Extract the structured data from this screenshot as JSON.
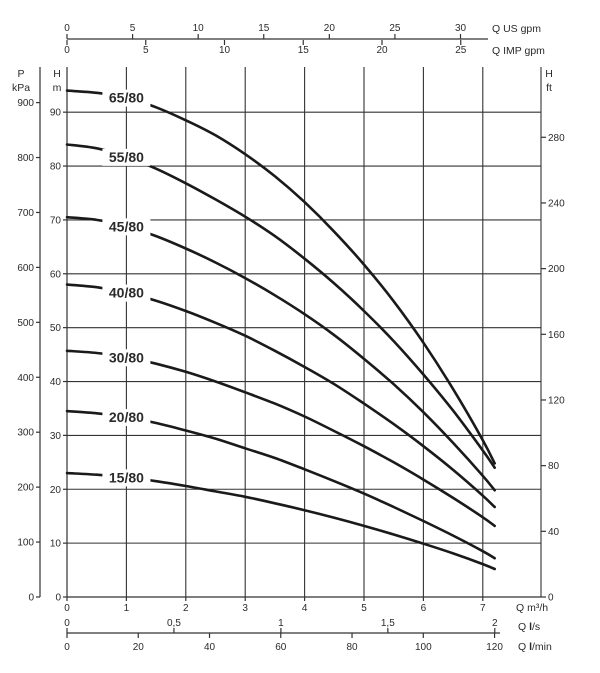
{
  "chart_data": {
    "type": "line",
    "x_unit": "Q m³/h",
    "y_unit": "H m",
    "xlim": [
      0,
      7
    ],
    "ylim": [
      0,
      95
    ],
    "series": [
      {
        "name": "65/80",
        "x": [
          0,
          0.5,
          1,
          1.5,
          2,
          2.5,
          3,
          3.5,
          4,
          4.5,
          5,
          5.5,
          6,
          6.5,
          7,
          7.2
        ],
        "y": [
          94,
          93.6,
          92.7,
          90.9,
          88.5,
          85.7,
          82.2,
          78.1,
          73.3,
          67.8,
          61.7,
          54.9,
          47.2,
          38.6,
          29.1,
          24.8
        ]
      },
      {
        "name": "55/80",
        "x": [
          0,
          0.5,
          1,
          1.5,
          2,
          2.5,
          3,
          3.5,
          4,
          4.5,
          5,
          5.5,
          6,
          6.5,
          7,
          7.2
        ],
        "y": [
          84,
          83.3,
          81.7,
          79.5,
          76.8,
          73.8,
          70.6,
          67.0,
          62.8,
          58.2,
          53.1,
          47.5,
          41.3,
          34.6,
          27.2,
          24.0
        ]
      },
      {
        "name": "45/80",
        "x": [
          0,
          0.5,
          1,
          1.5,
          2,
          2.5,
          3,
          3.5,
          4,
          4.5,
          5,
          5.5,
          6,
          6.5,
          7,
          7.2
        ],
        "y": [
          70.5,
          70.0,
          68.8,
          67.0,
          64.7,
          62.1,
          59.2,
          56.0,
          52.5,
          48.6,
          44.2,
          39.5,
          34.3,
          28.6,
          22.5,
          19.8
        ]
      },
      {
        "name": "40/80",
        "x": [
          0,
          0.5,
          1,
          1.5,
          2,
          2.5,
          3,
          3.5,
          4,
          4.5,
          5,
          5.5,
          6,
          6.5,
          7,
          7.2
        ],
        "y": [
          58.0,
          57.5,
          56.5,
          55.0,
          53.1,
          50.9,
          48.5,
          45.7,
          42.7,
          39.5,
          35.9,
          32.1,
          28.0,
          23.6,
          18.8,
          16.7
        ]
      },
      {
        "name": "30/80",
        "x": [
          0,
          0.5,
          1,
          1.5,
          2,
          2.5,
          3,
          3.5,
          4,
          4.5,
          5,
          5.5,
          6,
          6.5,
          7,
          7.2
        ],
        "y": [
          45.7,
          45.3,
          44.5,
          43.3,
          41.8,
          40.0,
          38.0,
          35.9,
          33.5,
          30.8,
          28.0,
          25.0,
          21.8,
          18.4,
          14.8,
          13.2
        ]
      },
      {
        "name": "20/80",
        "x": [
          0,
          0.5,
          1,
          1.5,
          2,
          2.5,
          3,
          3.5,
          4,
          4.5,
          5,
          5.5,
          6,
          6.5,
          7,
          7.2
        ],
        "y": [
          34.5,
          34.1,
          33.4,
          32.3,
          30.9,
          29.4,
          27.6,
          25.8,
          23.7,
          21.5,
          19.2,
          16.7,
          14.1,
          11.4,
          8.5,
          7.2
        ]
      },
      {
        "name": "15/80",
        "x": [
          0,
          0.5,
          1,
          1.5,
          2,
          2.5,
          3,
          3.5,
          4,
          4.5,
          5,
          5.5,
          6,
          6.5,
          7,
          7.2
        ],
        "y": [
          23.0,
          22.7,
          22.2,
          21.5,
          20.6,
          19.6,
          18.6,
          17.4,
          16.1,
          14.7,
          13.2,
          11.6,
          9.9,
          8.1,
          6.1,
          5.2
        ]
      }
    ],
    "grid": true,
    "axes": {
      "top_us_gpm": {
        "label": "Q US gpm",
        "min": 0,
        "max": 31.7,
        "ticks": [
          "0",
          "5",
          "10",
          "15",
          "20",
          "25",
          "30"
        ]
      },
      "top_imp_gpm": {
        "label": "Q IMP gpm",
        "min": 0,
        "max": 26.4,
        "ticks": [
          "0",
          "5",
          "10",
          "15",
          "20",
          "25"
        ]
      },
      "left_kpa": {
        "label_top": "P",
        "label_bottom": "kPa",
        "min": 0,
        "max": 931.6,
        "ticks": [
          "0",
          "100",
          "200",
          "300",
          "400",
          "500",
          "600",
          "700",
          "800",
          "900"
        ]
      },
      "left_m": {
        "label_top": "H",
        "label_bottom": "m",
        "min": 0,
        "max": 95,
        "ticks": [
          "0",
          "10",
          "20",
          "30",
          "40",
          "50",
          "60",
          "70",
          "80",
          "90"
        ]
      },
      "right_ft": {
        "label_top": "H",
        "label_bottom": "ft",
        "min": 0,
        "max": 311.7,
        "ticks": [
          "0",
          "40",
          "80",
          "120",
          "160",
          "200",
          "240",
          "280"
        ]
      },
      "bottom_m3h": {
        "label": "Q m³/h",
        "min": 0,
        "max": 7,
        "ticks": [
          "0",
          "1",
          "2",
          "3",
          "4",
          "5",
          "6",
          "7"
        ]
      },
      "bottom_ls": {
        "label_prefix": "Q ",
        "label_bold": "l",
        "label_suffix": "/s",
        "min": 0,
        "max": 1.944,
        "ticks": [
          "0",
          "0,5",
          "1",
          "1,5",
          "2"
        ]
      },
      "bottom_lmin": {
        "label_prefix": "Q ",
        "label_bold": "l",
        "label_suffix": "/min",
        "min": 0,
        "max": 116.7,
        "ticks": [
          "0",
          "20",
          "40",
          "60",
          "80",
          "100",
          "120"
        ]
      }
    }
  }
}
